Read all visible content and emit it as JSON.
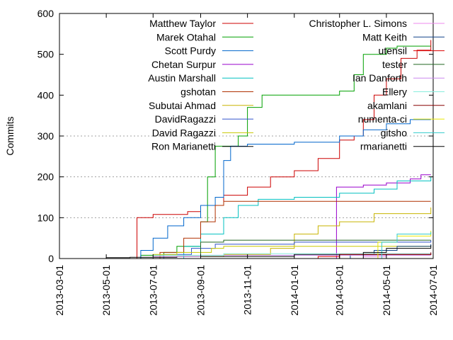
{
  "chart_data": {
    "type": "line",
    "title": "",
    "xlabel": "",
    "ylabel": "Commits",
    "ylim": [
      0,
      600
    ],
    "xlim": [
      "2013-03-01",
      "2014-07-01"
    ],
    "x_ticks": [
      "2013-03-01",
      "2013-05-01",
      "2013-07-01",
      "2013-09-01",
      "2013-11-01",
      "2014-01-01",
      "2014-03-01",
      "2014-05-01",
      "2014-07-01"
    ],
    "y_ticks": [
      0,
      100,
      200,
      300,
      400,
      500,
      600
    ],
    "grid": "horizontal dotted at y ticks",
    "legend_position": "top, two columns",
    "series": [
      {
        "name": "Matthew Taylor",
        "color": "#cc0000",
        "points": [
          [
            "2013-04-20",
            0
          ],
          [
            "2013-06-05",
            0
          ],
          [
            "2013-06-10",
            100
          ],
          [
            "2013-07-01",
            108
          ],
          [
            "2013-08-15",
            115
          ],
          [
            "2013-09-01",
            130
          ],
          [
            "2013-10-01",
            155
          ],
          [
            "2013-11-01",
            175
          ],
          [
            "2013-12-01",
            200
          ],
          [
            "2014-01-01",
            215
          ],
          [
            "2014-02-01",
            245
          ],
          [
            "2014-03-01",
            290
          ],
          [
            "2014-03-20",
            300
          ],
          [
            "2014-04-01",
            340
          ],
          [
            "2014-04-15",
            400
          ],
          [
            "2014-05-01",
            440
          ],
          [
            "2014-05-20",
            490
          ],
          [
            "2014-06-10",
            510
          ],
          [
            "2014-06-28",
            535
          ]
        ]
      },
      {
        "name": "Marek Otahal",
        "color": "#00a000",
        "points": [
          [
            "2013-06-05",
            0
          ],
          [
            "2013-06-15",
            8
          ],
          [
            "2013-07-15",
            15
          ],
          [
            "2013-08-01",
            30
          ],
          [
            "2013-09-01",
            90
          ],
          [
            "2013-09-10",
            200
          ],
          [
            "2013-09-20",
            275
          ],
          [
            "2013-10-20",
            300
          ],
          [
            "2013-11-01",
            370
          ],
          [
            "2013-11-20",
            400
          ],
          [
            "2014-01-01",
            400
          ],
          [
            "2014-03-01",
            410
          ],
          [
            "2014-03-20",
            450
          ],
          [
            "2014-04-01",
            500
          ],
          [
            "2014-05-01",
            515
          ],
          [
            "2014-05-15",
            520
          ],
          [
            "2014-06-28",
            520
          ]
        ]
      },
      {
        "name": "Scott Purdy",
        "color": "#0066cc",
        "points": [
          [
            "2013-06-10",
            0
          ],
          [
            "2013-06-15",
            20
          ],
          [
            "2013-07-01",
            50
          ],
          [
            "2013-07-20",
            80
          ],
          [
            "2013-08-10",
            100
          ],
          [
            "2013-09-01",
            130
          ],
          [
            "2013-09-20",
            150
          ],
          [
            "2013-10-01",
            240
          ],
          [
            "2013-10-10",
            275
          ],
          [
            "2013-11-01",
            280
          ],
          [
            "2014-01-01",
            285
          ],
          [
            "2014-03-01",
            300
          ],
          [
            "2014-04-01",
            315
          ],
          [
            "2014-05-01",
            330
          ],
          [
            "2014-06-01",
            340
          ],
          [
            "2014-06-28",
            340
          ]
        ]
      },
      {
        "name": "Chetan Surpur",
        "color": "#9900cc",
        "points": [
          [
            "2014-02-15",
            0
          ],
          [
            "2014-02-25",
            175
          ],
          [
            "2014-04-01",
            180
          ],
          [
            "2014-05-01",
            185
          ],
          [
            "2014-06-01",
            195
          ],
          [
            "2014-06-15",
            205
          ],
          [
            "2014-06-28",
            205
          ]
        ]
      },
      {
        "name": "Austin Marshall",
        "color": "#00c0c0",
        "points": [
          [
            "2013-07-15",
            0
          ],
          [
            "2013-08-10",
            30
          ],
          [
            "2013-09-01",
            60
          ],
          [
            "2013-10-01",
            100
          ],
          [
            "2013-10-20",
            130
          ],
          [
            "2013-11-15",
            145
          ],
          [
            "2014-01-01",
            150
          ],
          [
            "2014-03-01",
            160
          ],
          [
            "2014-04-15",
            170
          ],
          [
            "2014-05-15",
            190
          ],
          [
            "2014-06-28",
            200
          ]
        ]
      },
      {
        "name": "gshotan",
        "color": "#b03000",
        "points": [
          [
            "2013-06-20",
            0
          ],
          [
            "2013-07-10",
            15
          ],
          [
            "2013-08-10",
            50
          ],
          [
            "2013-09-01",
            90
          ],
          [
            "2013-09-20",
            130
          ],
          [
            "2013-10-01",
            140
          ],
          [
            "2014-06-28",
            140
          ]
        ]
      },
      {
        "name": "Subutai Ahmad",
        "color": "#c8b400",
        "points": [
          [
            "2013-06-10",
            0
          ],
          [
            "2013-07-01",
            5
          ],
          [
            "2013-10-01",
            10
          ],
          [
            "2013-12-01",
            25
          ],
          [
            "2014-01-01",
            60
          ],
          [
            "2014-02-01",
            80
          ],
          [
            "2014-03-01",
            90
          ],
          [
            "2014-04-15",
            110
          ],
          [
            "2014-06-28",
            125
          ]
        ]
      },
      {
        "name": "DavidRagazzi",
        "color": "#3355cc",
        "points": [
          [
            "2013-06-15",
            0
          ],
          [
            "2013-07-15",
            10
          ],
          [
            "2013-08-20",
            25
          ],
          [
            "2013-09-20",
            35
          ],
          [
            "2014-01-01",
            40
          ],
          [
            "2014-06-28",
            45
          ]
        ]
      },
      {
        "name": "David Ragazzi",
        "color": "#c8c800",
        "points": [
          [
            "2013-06-15",
            0
          ],
          [
            "2013-07-01",
            10
          ],
          [
            "2013-08-01",
            15
          ],
          [
            "2013-09-15",
            25
          ],
          [
            "2013-10-01",
            30
          ],
          [
            "2014-06-28",
            33
          ]
        ]
      },
      {
        "name": "Ron Marianetti",
        "color": "#000000",
        "points": [
          [
            "2013-04-01",
            0
          ],
          [
            "2013-05-01",
            2
          ],
          [
            "2013-06-01",
            3
          ],
          [
            "2013-08-01",
            5
          ],
          [
            "2014-01-01",
            10
          ],
          [
            "2014-06-28",
            12
          ]
        ]
      },
      {
        "name": "Christopher L. Simons",
        "color": "#ee88ee",
        "points": [
          [
            "2014-03-01",
            0
          ],
          [
            "2014-04-01",
            5
          ],
          [
            "2014-05-01",
            10
          ],
          [
            "2014-06-28",
            15
          ]
        ]
      },
      {
        "name": "Matt Keith",
        "color": "#114488",
        "points": [
          [
            "2014-02-01",
            0
          ],
          [
            "2014-03-15",
            10
          ],
          [
            "2014-04-15",
            20
          ],
          [
            "2014-05-15",
            30
          ],
          [
            "2014-06-28",
            35
          ]
        ]
      },
      {
        "name": "utensil",
        "color": "#dd0000",
        "points": [
          [
            "2014-01-01",
            0
          ],
          [
            "2014-02-01",
            5
          ],
          [
            "2014-03-01",
            10
          ],
          [
            "2014-06-28",
            12
          ]
        ]
      },
      {
        "name": "tester",
        "color": "#226622",
        "points": [
          [
            "2013-08-01",
            0
          ],
          [
            "2013-09-01",
            40
          ],
          [
            "2013-10-01",
            45
          ],
          [
            "2014-06-28",
            45
          ]
        ]
      },
      {
        "name": "Ian Danforth",
        "color": "#cc88ee",
        "points": [
          [
            "2013-06-01",
            0
          ],
          [
            "2013-07-01",
            5
          ],
          [
            "2013-09-01",
            8
          ],
          [
            "2014-06-28",
            8
          ]
        ]
      },
      {
        "name": "Ellery",
        "color": "#88eedd",
        "points": [
          [
            "2013-06-01",
            0
          ],
          [
            "2013-07-01",
            8
          ],
          [
            "2013-10-01",
            12
          ],
          [
            "2014-06-28",
            14
          ]
        ]
      },
      {
        "name": "akamlani",
        "color": "#880000",
        "points": [
          [
            "2014-02-15",
            0
          ],
          [
            "2014-03-01",
            10
          ],
          [
            "2014-06-28",
            15
          ]
        ]
      },
      {
        "name": "numenta-ci",
        "color": "#e8e800",
        "points": [
          [
            "2014-04-01",
            0
          ],
          [
            "2014-04-20",
            40
          ],
          [
            "2014-05-15",
            55
          ],
          [
            "2014-06-28",
            68
          ]
        ]
      },
      {
        "name": "gitsho",
        "color": "#33cccc",
        "points": [
          [
            "2014-04-10",
            0
          ],
          [
            "2014-04-25",
            40
          ],
          [
            "2014-05-15",
            60
          ],
          [
            "2014-06-28",
            65
          ]
        ]
      },
      {
        "name": "rmarianetti",
        "color": "#000000",
        "points": [
          [
            "2014-03-01",
            0
          ],
          [
            "2014-04-01",
            15
          ],
          [
            "2014-05-01",
            25
          ],
          [
            "2014-06-28",
            32
          ]
        ]
      }
    ]
  }
}
